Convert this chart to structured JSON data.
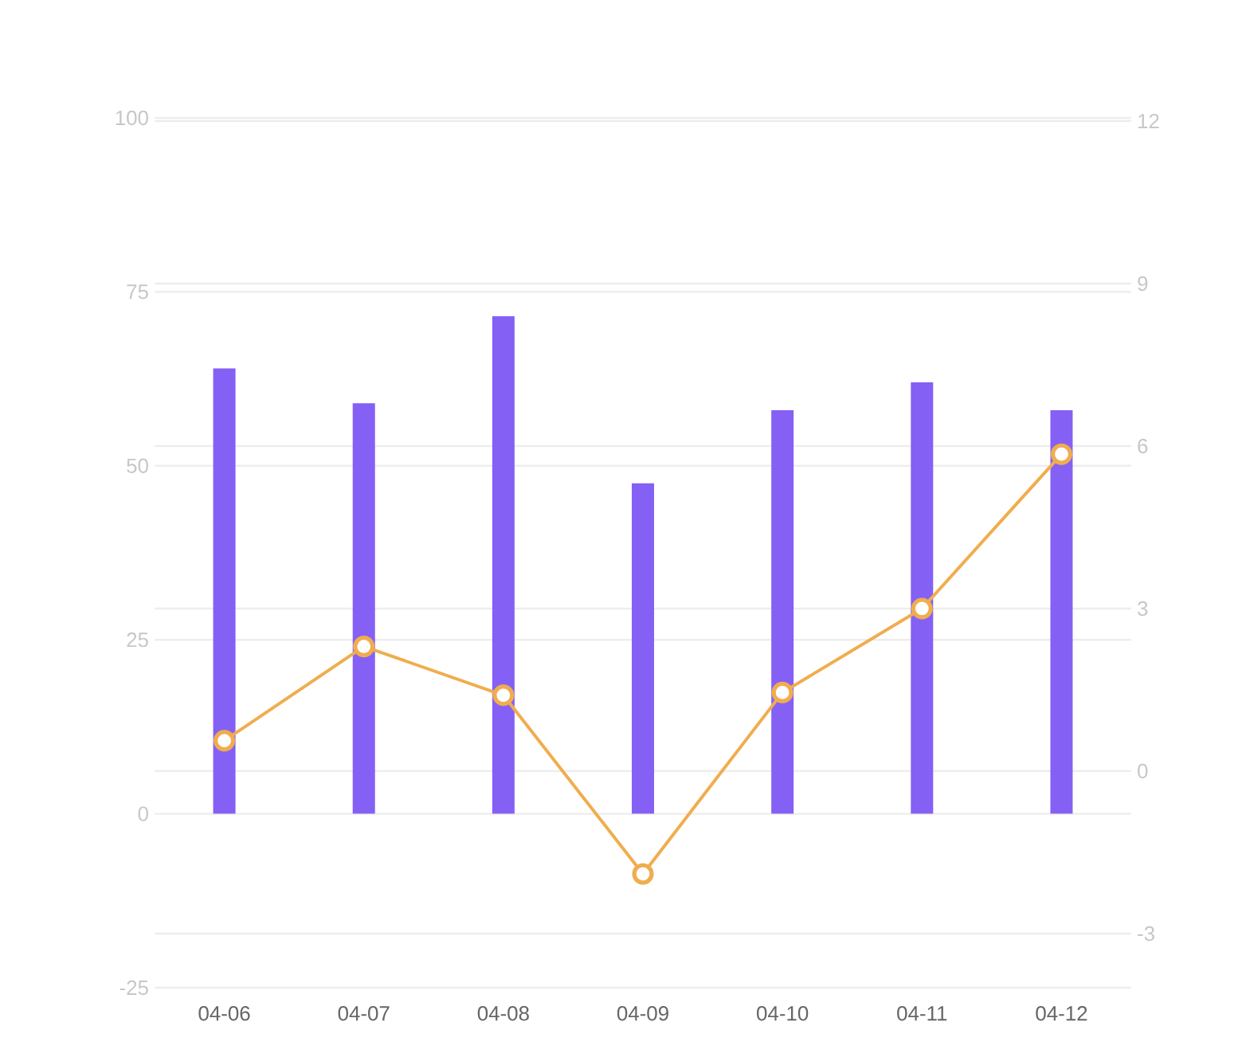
{
  "chart_data": {
    "type": "bar",
    "categories": [
      "04-06",
      "04-07",
      "04-08",
      "04-09",
      "04-10",
      "04-11",
      "04-12"
    ],
    "series": [
      {
        "color": "#8560f5",
        "values": [
          64,
          59,
          71.5,
          47.5,
          58,
          62,
          58
        ]
      },
      {
        "type": "line",
        "axis": "y2",
        "color": "#f0ad4e",
        "marker": "circle",
        "values": [
          0.56,
          2.3,
          1.4,
          -1.9,
          1.45,
          3.0,
          5.85
        ]
      }
    ],
    "ylim": [
      -25,
      100
    ],
    "yticks": [
      -25,
      0,
      25,
      50,
      75,
      100
    ],
    "y2lim": [
      -3,
      12
    ],
    "y2ticks": [
      -3,
      0,
      3,
      6,
      9,
      12
    ],
    "grid": true
  }
}
